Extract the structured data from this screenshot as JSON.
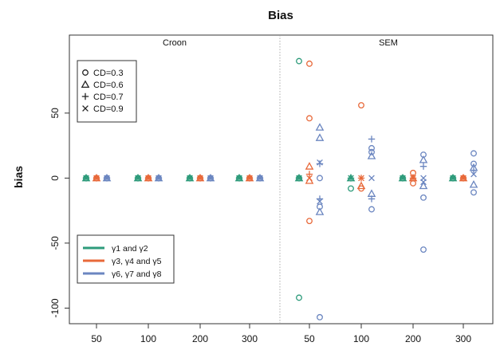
{
  "chart_data": {
    "type": "scatter",
    "title": "Bias",
    "ylabel": "bias",
    "xlabel": "",
    "ylim": [
      -112,
      110
    ],
    "yticks": [
      -100,
      -50,
      0,
      50
    ],
    "ytick_labels": [
      "-100",
      "-50",
      "0",
      "50"
    ],
    "panels": [
      "Croon",
      "SEM"
    ],
    "x_groups": [
      {
        "panel": "Croon",
        "label": "50"
      },
      {
        "panel": "Croon",
        "label": "100"
      },
      {
        "panel": "Croon",
        "label": "200"
      },
      {
        "panel": "Croon",
        "label": "300"
      },
      {
        "panel": "SEM",
        "label": "50"
      },
      {
        "panel": "SEM",
        "label": "100"
      },
      {
        "panel": "SEM",
        "label": "200"
      },
      {
        "panel": "SEM",
        "label": "300"
      }
    ],
    "grid": false,
    "legend_markers": {
      "position": "top-left",
      "entries": [
        {
          "marker": "circle",
          "symbol": "o",
          "label": "CD=0.3"
        },
        {
          "marker": "triangle",
          "symbol": "△",
          "label": "CD=0.6"
        },
        {
          "marker": "plus",
          "symbol": "+",
          "label": "CD=0.7"
        },
        {
          "marker": "cross",
          "symbol": "×",
          "label": "CD=0.9"
        }
      ]
    },
    "legend_series": {
      "position": "bottom-left",
      "entries": [
        {
          "label": "γ1 and γ2",
          "color": "#2e9b7b"
        },
        {
          "label": "γ3, γ4 and γ5",
          "color": "#e8693a"
        },
        {
          "label": "γ6, γ7 and γ8",
          "color": "#6b86c0"
        }
      ]
    },
    "series": [
      {
        "color": "#2e9b7b",
        "offset": -1,
        "points": [
          [
            0,
            "circle",
            0
          ],
          [
            0,
            "triangle",
            0
          ],
          [
            0,
            "plus",
            0
          ],
          [
            0,
            "cross",
            0
          ],
          [
            1,
            "circle",
            0
          ],
          [
            1,
            "triangle",
            0
          ],
          [
            1,
            "plus",
            0
          ],
          [
            1,
            "cross",
            0
          ],
          [
            2,
            "circle",
            0
          ],
          [
            2,
            "triangle",
            0
          ],
          [
            2,
            "plus",
            0
          ],
          [
            2,
            "cross",
            0
          ],
          [
            3,
            "circle",
            0
          ],
          [
            3,
            "triangle",
            0
          ],
          [
            3,
            "plus",
            0
          ],
          [
            3,
            "cross",
            0
          ],
          [
            4,
            "circle",
            90
          ],
          [
            4,
            "circle",
            -92
          ],
          [
            4,
            "circle",
            0
          ],
          [
            4,
            "triangle",
            0
          ],
          [
            4,
            "plus",
            0
          ],
          [
            4,
            "cross",
            0
          ],
          [
            5,
            "circle",
            -8
          ],
          [
            5,
            "triangle",
            0
          ],
          [
            5,
            "plus",
            0
          ],
          [
            5,
            "cross",
            0
          ],
          [
            6,
            "circle",
            0
          ],
          [
            6,
            "triangle",
            0
          ],
          [
            6,
            "plus",
            0
          ],
          [
            6,
            "cross",
            0
          ],
          [
            7,
            "circle",
            0
          ],
          [
            7,
            "triangle",
            0
          ],
          [
            7,
            "plus",
            0
          ],
          [
            7,
            "cross",
            0
          ]
        ]
      },
      {
        "color": "#e8693a",
        "offset": 0,
        "points": [
          [
            0,
            "circle",
            0
          ],
          [
            0,
            "triangle",
            0
          ],
          [
            0,
            "plus",
            0
          ],
          [
            0,
            "cross",
            0
          ],
          [
            1,
            "circle",
            0
          ],
          [
            1,
            "triangle",
            0
          ],
          [
            1,
            "plus",
            0
          ],
          [
            1,
            "cross",
            0
          ],
          [
            2,
            "circle",
            0
          ],
          [
            2,
            "triangle",
            0
          ],
          [
            2,
            "plus",
            0
          ],
          [
            2,
            "cross",
            0
          ],
          [
            3,
            "circle",
            0
          ],
          [
            3,
            "triangle",
            0
          ],
          [
            3,
            "plus",
            0
          ],
          [
            3,
            "cross",
            0
          ],
          [
            4,
            "circle",
            88
          ],
          [
            4,
            "circle",
            46
          ],
          [
            4,
            "circle",
            -33
          ],
          [
            4,
            "triangle",
            9
          ],
          [
            4,
            "triangle",
            -2
          ],
          [
            4,
            "plus",
            3
          ],
          [
            4,
            "cross",
            0
          ],
          [
            5,
            "circle",
            56
          ],
          [
            5,
            "circle",
            -8
          ],
          [
            5,
            "triangle",
            -6
          ],
          [
            5,
            "plus",
            0
          ],
          [
            5,
            "cross",
            0
          ],
          [
            6,
            "circle",
            4
          ],
          [
            6,
            "circle",
            -4
          ],
          [
            6,
            "triangle",
            0
          ],
          [
            6,
            "plus",
            0
          ],
          [
            6,
            "cross",
            0
          ],
          [
            7,
            "circle",
            0
          ],
          [
            7,
            "triangle",
            0
          ],
          [
            7,
            "plus",
            0
          ],
          [
            7,
            "cross",
            0
          ]
        ]
      },
      {
        "color": "#6b86c0",
        "offset": 1,
        "points": [
          [
            0,
            "circle",
            0
          ],
          [
            0,
            "triangle",
            0
          ],
          [
            0,
            "plus",
            0
          ],
          [
            0,
            "cross",
            0
          ],
          [
            1,
            "circle",
            0
          ],
          [
            1,
            "triangle",
            0
          ],
          [
            1,
            "plus",
            0
          ],
          [
            1,
            "cross",
            0
          ],
          [
            2,
            "circle",
            0
          ],
          [
            2,
            "triangle",
            0
          ],
          [
            2,
            "plus",
            0
          ],
          [
            2,
            "cross",
            0
          ],
          [
            3,
            "circle",
            0
          ],
          [
            3,
            "triangle",
            0
          ],
          [
            3,
            "plus",
            0
          ],
          [
            3,
            "cross",
            0
          ],
          [
            4,
            "circle",
            0
          ],
          [
            4,
            "circle",
            -22
          ],
          [
            4,
            "circle",
            -107
          ],
          [
            4,
            "triangle",
            39
          ],
          [
            4,
            "triangle",
            31
          ],
          [
            4,
            "triangle",
            -26
          ],
          [
            4,
            "plus",
            11
          ],
          [
            4,
            "plus",
            -16
          ],
          [
            4,
            "cross",
            12
          ],
          [
            4,
            "cross",
            -18
          ],
          [
            5,
            "circle",
            23
          ],
          [
            5,
            "circle",
            20
          ],
          [
            5,
            "circle",
            -24
          ],
          [
            5,
            "triangle",
            -12
          ],
          [
            5,
            "triangle",
            17
          ],
          [
            5,
            "plus",
            30
          ],
          [
            5,
            "plus",
            -16
          ],
          [
            5,
            "cross",
            0
          ],
          [
            6,
            "circle",
            18
          ],
          [
            6,
            "circle",
            -15
          ],
          [
            6,
            "circle",
            -55
          ],
          [
            6,
            "triangle",
            14
          ],
          [
            6,
            "triangle",
            -6
          ],
          [
            6,
            "plus",
            9
          ],
          [
            6,
            "cross",
            0
          ],
          [
            6,
            "cross",
            -3
          ],
          [
            7,
            "circle",
            19
          ],
          [
            7,
            "circle",
            11
          ],
          [
            7,
            "circle",
            -11
          ],
          [
            7,
            "triangle",
            -5
          ],
          [
            7,
            "triangle",
            8
          ],
          [
            7,
            "plus",
            6
          ],
          [
            7,
            "cross",
            3
          ]
        ]
      }
    ]
  }
}
